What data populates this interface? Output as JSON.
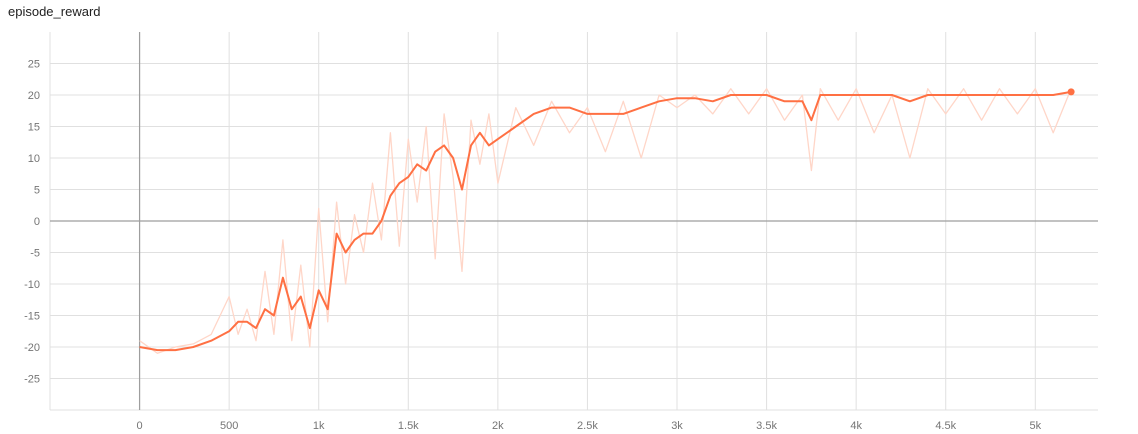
{
  "chart_data": {
    "type": "line",
    "title": "episode_reward",
    "xlabel": "",
    "ylabel": "",
    "xlim": [
      -500,
      5350
    ],
    "ylim": [
      -30,
      30
    ],
    "x_ticks": [
      0,
      500,
      1000,
      1500,
      2000,
      2500,
      3000,
      3500,
      4000,
      4500,
      5000
    ],
    "x_tick_labels": [
      "0",
      "500",
      "1k",
      "1.5k",
      "2k",
      "2.5k",
      "3k",
      "3.5k",
      "4k",
      "4.5k",
      "5k"
    ],
    "y_ticks": [
      -25,
      -20,
      -15,
      -10,
      -5,
      0,
      5,
      10,
      15,
      20,
      25
    ],
    "grid": true,
    "colors": {
      "smoothed": "#ff7043",
      "raw": "#ffd6c8",
      "grid": "#e0e0e0",
      "zero_axis": "#9e9e9e"
    },
    "series": [
      {
        "role": "smoothed",
        "x": [
          0,
          100,
          200,
          300,
          400,
          500,
          550,
          600,
          650,
          700,
          750,
          800,
          850,
          900,
          950,
          1000,
          1050,
          1100,
          1150,
          1200,
          1250,
          1300,
          1350,
          1400,
          1450,
          1500,
          1550,
          1600,
          1650,
          1700,
          1750,
          1800,
          1850,
          1900,
          1950,
          2000,
          2100,
          2200,
          2300,
          2400,
          2500,
          2600,
          2700,
          2800,
          2900,
          3000,
          3100,
          3200,
          3300,
          3400,
          3500,
          3600,
          3700,
          3750,
          3800,
          3900,
          4000,
          4100,
          4200,
          4300,
          4400,
          4500,
          4600,
          4700,
          4800,
          4900,
          5000,
          5100,
          5200
        ],
        "y": [
          -20,
          -20.5,
          -20.5,
          -20,
          -19,
          -17.5,
          -16,
          -16,
          -17,
          -14,
          -15,
          -9,
          -14,
          -12,
          -17,
          -11,
          -14,
          -2,
          -5,
          -3,
          -2,
          -2,
          0,
          4,
          6,
          7,
          9,
          8,
          11,
          12,
          10,
          5,
          12,
          14,
          12,
          13,
          15,
          17,
          18,
          18,
          17,
          17,
          17,
          18,
          19,
          19.5,
          19.5,
          19,
          20,
          20,
          20,
          19,
          19,
          16,
          20,
          20,
          20,
          20,
          20,
          19,
          20,
          20,
          20,
          20,
          20,
          20,
          20,
          20,
          20.5
        ]
      },
      {
        "role": "raw",
        "x": [
          0,
          100,
          200,
          300,
          400,
          500,
          550,
          600,
          650,
          700,
          750,
          800,
          850,
          900,
          950,
          1000,
          1050,
          1100,
          1150,
          1200,
          1250,
          1300,
          1350,
          1400,
          1450,
          1500,
          1550,
          1600,
          1650,
          1700,
          1750,
          1800,
          1850,
          1900,
          1950,
          2000,
          2100,
          2200,
          2300,
          2400,
          2500,
          2600,
          2700,
          2800,
          2900,
          3000,
          3100,
          3200,
          3300,
          3400,
          3500,
          3600,
          3700,
          3750,
          3800,
          3900,
          4000,
          4100,
          4200,
          4300,
          4400,
          4500,
          4600,
          4700,
          4800,
          4900,
          5000,
          5100,
          5200
        ],
        "y": [
          -19,
          -21,
          -20,
          -19.5,
          -18,
          -12,
          -18,
          -14,
          -19,
          -8,
          -18,
          -3,
          -19,
          -7,
          -20,
          2,
          -16,
          3,
          -10,
          1,
          -5,
          6,
          -3,
          14,
          -4,
          13,
          3,
          15,
          -6,
          17,
          7,
          -8,
          16,
          9,
          17,
          6,
          18,
          12,
          19,
          14,
          18,
          11,
          19,
          10,
          20,
          18,
          20,
          17,
          21,
          17,
          21,
          16,
          20,
          8,
          21,
          16,
          21,
          14,
          20,
          10,
          21,
          17,
          21,
          16,
          21,
          17,
          21,
          14,
          21
        ]
      }
    ]
  }
}
